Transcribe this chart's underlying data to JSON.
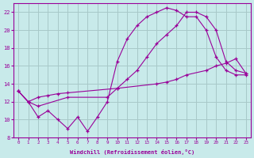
{
  "background_color": "#c8eaea",
  "grid_color": "#a8c8c8",
  "line_color": "#990099",
  "xlabel": "Windchill (Refroidissement éolien,°C)",
  "xlim": [
    -0.5,
    23.5
  ],
  "ylim": [
    8,
    23
  ],
  "yticks": [
    8,
    10,
    12,
    14,
    16,
    18,
    20,
    22
  ],
  "xticks": [
    0,
    1,
    2,
    3,
    4,
    5,
    6,
    7,
    8,
    9,
    10,
    11,
    12,
    13,
    14,
    15,
    16,
    17,
    18,
    19,
    20,
    21,
    22,
    23
  ],
  "line1_x": [
    0,
    1,
    2,
    3,
    4,
    5,
    6,
    7,
    8,
    9,
    10,
    11,
    12,
    13,
    14,
    15,
    16,
    17,
    18,
    19,
    20,
    21,
    22,
    23
  ],
  "line1_y": [
    13.2,
    12.0,
    10.3,
    11.0,
    10.0,
    9.0,
    10.3,
    8.7,
    10.3,
    12.0,
    16.5,
    19.0,
    20.5,
    21.5,
    22.0,
    22.5,
    22.2,
    21.5,
    21.5,
    20.0,
    17.0,
    15.5,
    15.0,
    15.0
  ],
  "line2_x": [
    0,
    1,
    2,
    3,
    4,
    5,
    10,
    14,
    15,
    16,
    17,
    19,
    20,
    21,
    22,
    23
  ],
  "line2_y": [
    13.2,
    12.0,
    12.5,
    12.7,
    12.9,
    13.0,
    13.5,
    14.0,
    14.2,
    14.5,
    15.0,
    15.5,
    16.0,
    16.3,
    16.8,
    15.2
  ],
  "line3_x": [
    0,
    1,
    2,
    5,
    9,
    10,
    11,
    12,
    13,
    14,
    15,
    16,
    17,
    18,
    19,
    20,
    21,
    22,
    23
  ],
  "line3_y": [
    13.2,
    12.0,
    11.5,
    12.5,
    12.5,
    13.5,
    14.5,
    15.5,
    17.0,
    18.5,
    19.5,
    20.5,
    22.0,
    22.0,
    21.5,
    20.0,
    16.5,
    15.5,
    15.2
  ]
}
